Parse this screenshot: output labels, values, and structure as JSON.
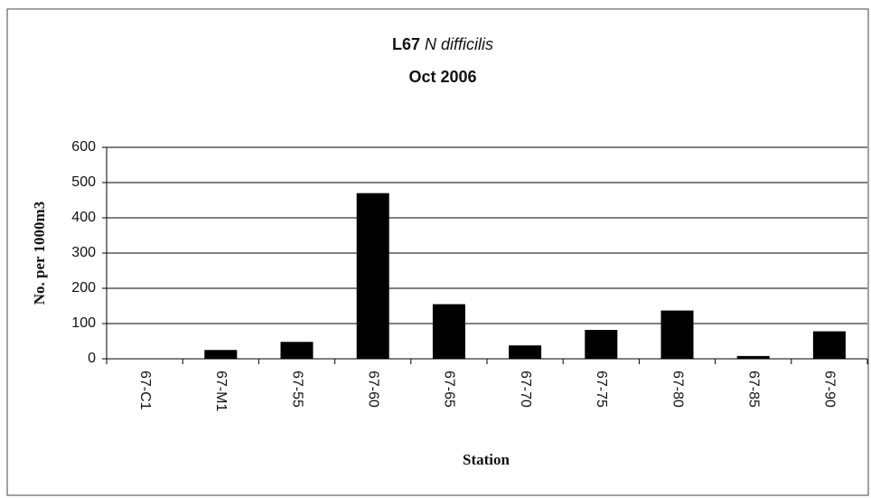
{
  "chart_data": {
    "type": "bar",
    "title": [
      "L67",
      "N difficilis"
    ],
    "subtitle": "Oct 2006",
    "x_label": "Station",
    "y_label": "No. per 1000m3",
    "categories": [
      "67-C1",
      "67-M1",
      "67-55",
      "67-60",
      "67-65",
      "67-70",
      "67-75",
      "67-80",
      "67-85",
      "67-90"
    ],
    "values": [
      0,
      25,
      48,
      470,
      155,
      38,
      82,
      137,
      8,
      78
    ],
    "color": "#000000",
    "ylim": [
      0,
      600
    ],
    "yticks": [
      0,
      100,
      200,
      300,
      400,
      500,
      600
    ],
    "grid": true
  }
}
